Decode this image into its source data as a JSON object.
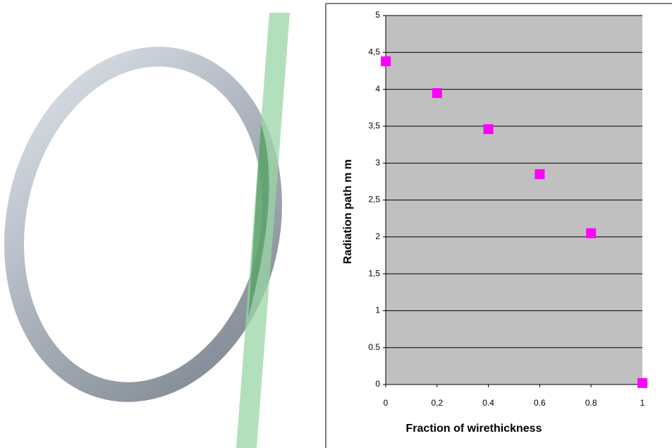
{
  "chart_data": {
    "type": "scatter",
    "x_label": "Fraction of wirethickness",
    "y_label": "Radiation path m m",
    "series": [
      {
        "color": "#ff00ff",
        "x": [
          0,
          0.2,
          0.4,
          0.6,
          0.8,
          1
        ],
        "values": [
          4.38,
          3.95,
          3.46,
          2.85,
          2.05,
          0.02
        ]
      }
    ],
    "xlim": [
      0,
      1
    ],
    "xticks": [
      0,
      {
        "value": 0.2,
        "label": "0,2"
      },
      0.4,
      0.6,
      0.8,
      1
    ],
    "ylim": [
      0,
      5
    ],
    "yticks": [
      0,
      0.5,
      1,
      {
        "value": 1.5,
        "label": "1,5"
      },
      2,
      {
        "value": 2.5,
        "label": "2,5"
      },
      3,
      {
        "value": 3.5,
        "label": "3,5"
      },
      4,
      {
        "value": 4.5,
        "label": "4,5"
      },
      5
    ],
    "grid": true,
    "plot_background": "#c0c0c0"
  }
}
